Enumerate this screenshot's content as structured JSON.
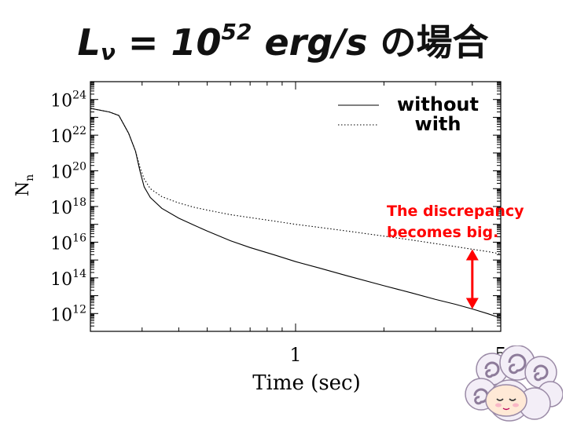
{
  "slide": {
    "title": {
      "symbol": "L",
      "subscript": "ν",
      "equals": "=",
      "base": "10",
      "exponent": "52",
      "unit": "erg/s",
      "tail": "の場合"
    }
  },
  "chart_data": {
    "type": "line",
    "title": "",
    "xlabel": "Time (sec)",
    "ylabel": "Nn",
    "ylabel_main": "N",
    "ylabel_sub": "n",
    "xscale": "log",
    "yscale": "log",
    "xlim": [
      0.2,
      5
    ],
    "ylim": [
      100000000000.0,
      1e+25
    ],
    "x_ticks": [
      {
        "value": 1,
        "label": "1"
      },
      {
        "value": 5,
        "label": "5"
      }
    ],
    "y_ticks": [
      {
        "value": 1000000000000.0,
        "base": "10",
        "exp": "12"
      },
      {
        "value": 100000000000000.0,
        "base": "10",
        "exp": "14"
      },
      {
        "value": 1e+16,
        "base": "10",
        "exp": "16"
      },
      {
        "value": 1e+18,
        "base": "10",
        "exp": "18"
      },
      {
        "value": 1e+20,
        "base": "10",
        "exp": "20"
      },
      {
        "value": 1e+22,
        "base": "10",
        "exp": "22"
      },
      {
        "value": 1e+24,
        "base": "10",
        "exp": "24"
      }
    ],
    "grid": false,
    "legend_position": "top-right",
    "series": [
      {
        "name": "without",
        "style": "solid",
        "color": "#000000",
        "x": [
          0.2,
          0.232,
          0.25,
          0.27,
          0.285,
          0.295,
          0.305,
          0.32,
          0.35,
          0.4,
          0.45,
          0.5,
          0.6,
          0.7,
          0.85,
          1.0,
          1.2,
          1.5,
          2.0,
          2.5,
          3.0,
          3.5,
          4.0,
          4.5,
          5.0
        ],
        "y": [
          3.2e+23,
          2e+23,
          1.26e+23,
          1.26e+22,
          1.26e+21,
          1e+20,
          1.26e+19,
          3.2e+18,
          7.9e+17,
          2.2e+17,
          9.1e+16,
          4.2e+16,
          1.2e+16,
          5000000000000000.0,
          1900000000000000.0,
          810000000000000.0,
          360000000000000.0,
          130000000000000.0,
          36000000000000.0,
          14000000000000.0,
          6100000000000.0,
          3300000000000.0,
          1800000000000.0,
          1000000000000.0,
          560000000000.0
        ]
      },
      {
        "name": "with",
        "style": "dotted",
        "color": "#000000",
        "x": [
          0.2,
          0.232,
          0.25,
          0.27,
          0.285,
          0.295,
          0.305,
          0.32,
          0.35,
          0.4,
          0.45,
          0.5,
          0.6,
          0.7,
          0.85,
          1.0,
          1.2,
          1.5,
          2.0,
          2.5,
          3.0,
          3.5,
          4.0,
          4.5,
          5.0
        ],
        "y": [
          3.2e+23,
          2e+23,
          1.26e+23,
          1.26e+22,
          1.26e+21,
          1.6e+20,
          3.5e+19,
          1e+19,
          3.6e+18,
          1.58e+18,
          9.1e+17,
          6.3e+17,
          3.5e+17,
          2.4e+17,
          1.5e+17,
          1e+17,
          6.8e+16,
          4.2e+16,
          2.2e+16,
          1.3e+16,
          8300000000000000.0,
          5700000000000000.0,
          4000000000000000.0,
          3000000000000000.0,
          2200000000000000.0
        ]
      }
    ],
    "annotations": [
      {
        "lines": [
          "The discrepancy",
          "becomes big."
        ],
        "color": "#ff0000",
        "arrow": {
          "x": 4.0,
          "y_from": 1800000000000.0,
          "y_to": 4000000000000000.0,
          "style": "double-headed"
        }
      }
    ]
  }
}
